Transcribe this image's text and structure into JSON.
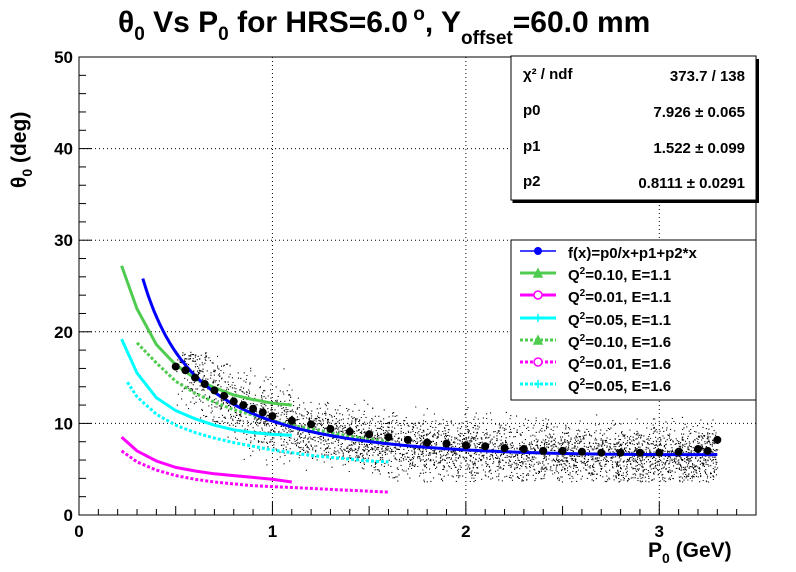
{
  "chart_data": {
    "type": "scatter",
    "title": {
      "pre": "θ",
      "sub0": "0",
      "mid": " Vs P",
      "sub1": "0",
      "mid2": " for HRS=6.0",
      "sup": " o",
      "mid3": ", Y",
      "sub2": "offset",
      "post": "=60.0 mm"
    },
    "xlabel": {
      "main": "P",
      "sub": "0",
      "post": " (GeV)"
    },
    "ylabel": {
      "main": "θ",
      "sub": "0",
      "post": " (deg)"
    },
    "xlim": [
      0,
      3.5
    ],
    "ylim": [
      0,
      50
    ],
    "xticks": [
      0,
      1,
      2,
      3
    ],
    "yticks": [
      0,
      10,
      20,
      30,
      40,
      50
    ],
    "grid": true,
    "stats": {
      "rows": [
        {
          "name": "χ² / ndf",
          "value": "373.7 / 138"
        },
        {
          "name": "p0",
          "value": "7.926 ± 0.065"
        },
        {
          "name": "p1",
          "value": "1.522 ± 0.099"
        },
        {
          "name": "p2",
          "value": "0.8111 ± 0.0291"
        }
      ]
    },
    "legend_position": "right",
    "fit": {
      "label": "f(x)=p0/x+p1+p2*x",
      "p0": 7.926,
      "p1": 1.522,
      "p2": 0.8111,
      "xrange": [
        0.33,
        3.3
      ],
      "color": "#0000ff"
    },
    "profile_points": {
      "x": [
        0.5,
        0.55,
        0.6,
        0.65,
        0.7,
        0.75,
        0.8,
        0.85,
        0.9,
        0.95,
        1.0,
        1.1,
        1.2,
        1.3,
        1.4,
        1.5,
        1.6,
        1.7,
        1.8,
        1.9,
        2.0,
        2.1,
        2.2,
        2.3,
        2.4,
        2.5,
        2.6,
        2.7,
        2.8,
        2.9,
        3.0,
        3.1,
        3.2,
        3.25,
        3.3
      ],
      "y": [
        16.2,
        15.8,
        15.0,
        14.3,
        13.6,
        13.0,
        12.4,
        12.0,
        11.6,
        11.2,
        10.8,
        10.3,
        9.9,
        9.4,
        9.1,
        8.8,
        8.5,
        8.2,
        7.9,
        7.8,
        7.6,
        7.5,
        7.3,
        7.2,
        7.0,
        7.0,
        6.9,
        6.8,
        6.8,
        6.8,
        6.8,
        6.9,
        7.2,
        7.0,
        8.2
      ],
      "color": "#000000"
    },
    "series": [
      {
        "name": "Q²=0.10, E=1.1",
        "sup": "2",
        "pre": "Q",
        "post": "=0.10, E=1.1",
        "style": "solid",
        "color": "#4fcc4f",
        "marker": "triangle",
        "x": [
          0.22,
          0.3,
          0.4,
          0.5,
          0.6,
          0.7,
          0.8,
          0.9,
          1.0,
          1.1
        ],
        "y": [
          27.2,
          22.5,
          18.6,
          16.4,
          14.9,
          13.9,
          13.1,
          12.6,
          12.2,
          12.0
        ]
      },
      {
        "name": "Q²=0.01, E=1.1",
        "sup": "2",
        "pre": "Q",
        "post": "=0.01, E=1.1",
        "style": "solid",
        "color": "#ff00ff",
        "marker": "circle",
        "x": [
          0.22,
          0.3,
          0.4,
          0.5,
          0.6,
          0.7,
          0.8,
          0.9,
          1.0,
          1.1
        ],
        "y": [
          8.5,
          7.0,
          5.9,
          5.2,
          4.8,
          4.5,
          4.3,
          4.1,
          3.9,
          3.6
        ]
      },
      {
        "name": "Q²=0.05, E=1.1",
        "sup": "2",
        "pre": "Q",
        "post": "=0.05, E=1.1",
        "style": "solid",
        "color": "#00ffff",
        "marker": "plus",
        "x": [
          0.22,
          0.3,
          0.4,
          0.5,
          0.6,
          0.7,
          0.8,
          0.9,
          1.0,
          1.1
        ],
        "y": [
          19.2,
          15.5,
          12.8,
          11.4,
          10.5,
          9.8,
          9.3,
          9.0,
          8.8,
          8.7
        ]
      },
      {
        "name": "Q²=0.10, E=1.6",
        "sup": "2",
        "pre": "Q",
        "post": "=0.10, E=1.6",
        "style": "dashed",
        "color": "#4fcc4f",
        "marker": "triangle",
        "x": [
          0.3,
          0.4,
          0.5,
          0.6,
          0.7,
          0.8,
          0.9,
          1.0,
          1.1,
          1.2,
          1.3,
          1.4,
          1.5,
          1.6
        ],
        "y": [
          18.8,
          16.6,
          14.6,
          13.3,
          12.3,
          11.5,
          10.9,
          10.3,
          9.8,
          9.4,
          9.0,
          8.6,
          8.3,
          8.0
        ]
      },
      {
        "name": "Q²=0.01, E=1.6",
        "sup": "2",
        "pre": "Q",
        "post": "=0.01, E=1.6",
        "style": "dashed",
        "color": "#ff00ff",
        "marker": "circle",
        "x": [
          0.22,
          0.3,
          0.4,
          0.5,
          0.6,
          0.7,
          0.8,
          0.9,
          1.0,
          1.1,
          1.2,
          1.3,
          1.4,
          1.5,
          1.6
        ],
        "y": [
          7.0,
          5.8,
          4.9,
          4.3,
          3.9,
          3.6,
          3.4,
          3.2,
          3.1,
          3.0,
          2.9,
          2.8,
          2.7,
          2.6,
          2.5
        ]
      },
      {
        "name": "Q²=0.05, E=1.6",
        "sup": "2",
        "pre": "Q",
        "post": "=0.05, E=1.6",
        "style": "dashed",
        "color": "#00ffff",
        "marker": "plus",
        "x": [
          0.25,
          0.3,
          0.4,
          0.5,
          0.6,
          0.7,
          0.8,
          0.9,
          1.0,
          1.1,
          1.2,
          1.3,
          1.4,
          1.5,
          1.6
        ],
        "y": [
          14.5,
          12.9,
          11.0,
          9.8,
          9.0,
          8.4,
          7.9,
          7.5,
          7.1,
          6.8,
          6.5,
          6.3,
          6.1,
          5.9,
          5.8
        ]
      }
    ]
  }
}
